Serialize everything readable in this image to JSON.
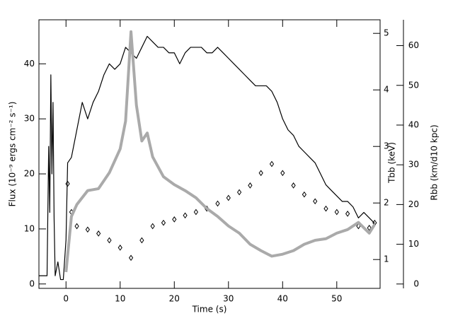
{
  "chart_data": {
    "type": "line",
    "x_label": "Time (s)",
    "y_label": "Flux (10⁻⁹ ergs cm⁻² s⁻¹)",
    "y2_label": "Tbb (keV)",
    "y3_label": "Rbb (km/d10 kpc)",
    "xlim": [
      -5,
      58
    ],
    "xticks": [
      0,
      10,
      20,
      30,
      40,
      50
    ],
    "ylim": [
      -0.8,
      48
    ],
    "yticks": [
      0,
      10,
      20,
      30,
      40
    ],
    "y2lim": [
      0.49,
      5.24
    ],
    "y2ticks": [
      1,
      2,
      3,
      4,
      5
    ],
    "y3lim": [
      -1.1,
      66.5
    ],
    "y3ticks": [
      0,
      10,
      20,
      30,
      40,
      50,
      60
    ],
    "series": [
      {
        "name": "Flux",
        "color": "#000000",
        "axis": "y",
        "style": "line",
        "x": [
          -5,
          -4,
          -3.5,
          -3.2,
          -3,
          -2.8,
          -2.6,
          -2.4,
          -2.2,
          -2,
          -1.5,
          -1,
          -0.5,
          0,
          0.3,
          1,
          2,
          3,
          4,
          5,
          6,
          7,
          8,
          9,
          10,
          11,
          12,
          13,
          14,
          15,
          16,
          17,
          18,
          19,
          20,
          21,
          22,
          23,
          24,
          25,
          26,
          27,
          28,
          29,
          30,
          31,
          32,
          33,
          34,
          35,
          36,
          37,
          38,
          39,
          40,
          41,
          42,
          43,
          44,
          45,
          46,
          47,
          48,
          49,
          50,
          51,
          52,
          53,
          54,
          55,
          56,
          57
        ],
        "values": [
          1.5,
          1.5,
          1.5,
          25,
          13,
          38,
          20,
          33,
          12,
          1.5,
          4,
          0.8,
          0.8,
          8,
          22,
          23,
          28,
          33,
          30,
          33,
          35,
          38,
          40,
          39,
          40,
          43,
          42,
          41,
          43,
          45,
          44,
          43,
          43,
          42,
          42,
          40,
          42,
          43,
          43,
          43,
          42,
          42,
          43,
          42,
          41,
          40,
          39,
          38,
          37,
          36,
          36,
          36,
          35,
          33,
          30,
          28,
          27,
          25,
          24,
          23,
          22,
          20,
          18,
          17,
          16,
          15,
          15,
          14,
          12,
          13,
          12,
          11
        ]
      },
      {
        "name": "Tbb",
        "color": "#000000",
        "axis": "y2",
        "style": "diamond",
        "x": [
          0.3,
          1,
          2,
          4,
          6,
          8,
          10,
          12,
          14,
          16,
          18,
          20,
          22,
          24,
          26,
          28,
          30,
          32,
          34,
          36,
          38,
          40,
          42,
          44,
          46,
          48,
          50,
          52,
          54,
          56,
          57
        ],
        "values": [
          2.34,
          1.84,
          1.59,
          1.53,
          1.46,
          1.34,
          1.21,
          1.03,
          1.34,
          1.59,
          1.65,
          1.71,
          1.78,
          1.84,
          1.9,
          1.99,
          2.09,
          2.19,
          2.31,
          2.53,
          2.69,
          2.53,
          2.31,
          2.15,
          2.03,
          1.9,
          1.84,
          1.81,
          1.59,
          1.56,
          1.65
        ]
      },
      {
        "name": "Rbb",
        "color": "#aaaaaa",
        "axis": "y3",
        "style": "line",
        "x": [
          0,
          1,
          2,
          4,
          6,
          8,
          10,
          11,
          12,
          13,
          14,
          15,
          16,
          18,
          20,
          22,
          24,
          26,
          28,
          30,
          32,
          34,
          36,
          38,
          40,
          42,
          44,
          46,
          48,
          50,
          52,
          54,
          56,
          57
        ],
        "values": [
          3,
          17,
          20,
          23.5,
          24,
          28,
          34,
          41,
          63.5,
          45,
          36,
          38,
          32,
          27,
          25,
          23.5,
          21.7,
          19,
          17,
          14.6,
          12.8,
          10,
          8.4,
          7,
          7.5,
          8.4,
          10,
          11,
          11.4,
          12.8,
          13.7,
          15.5,
          12.8,
          15
        ]
      }
    ]
  }
}
